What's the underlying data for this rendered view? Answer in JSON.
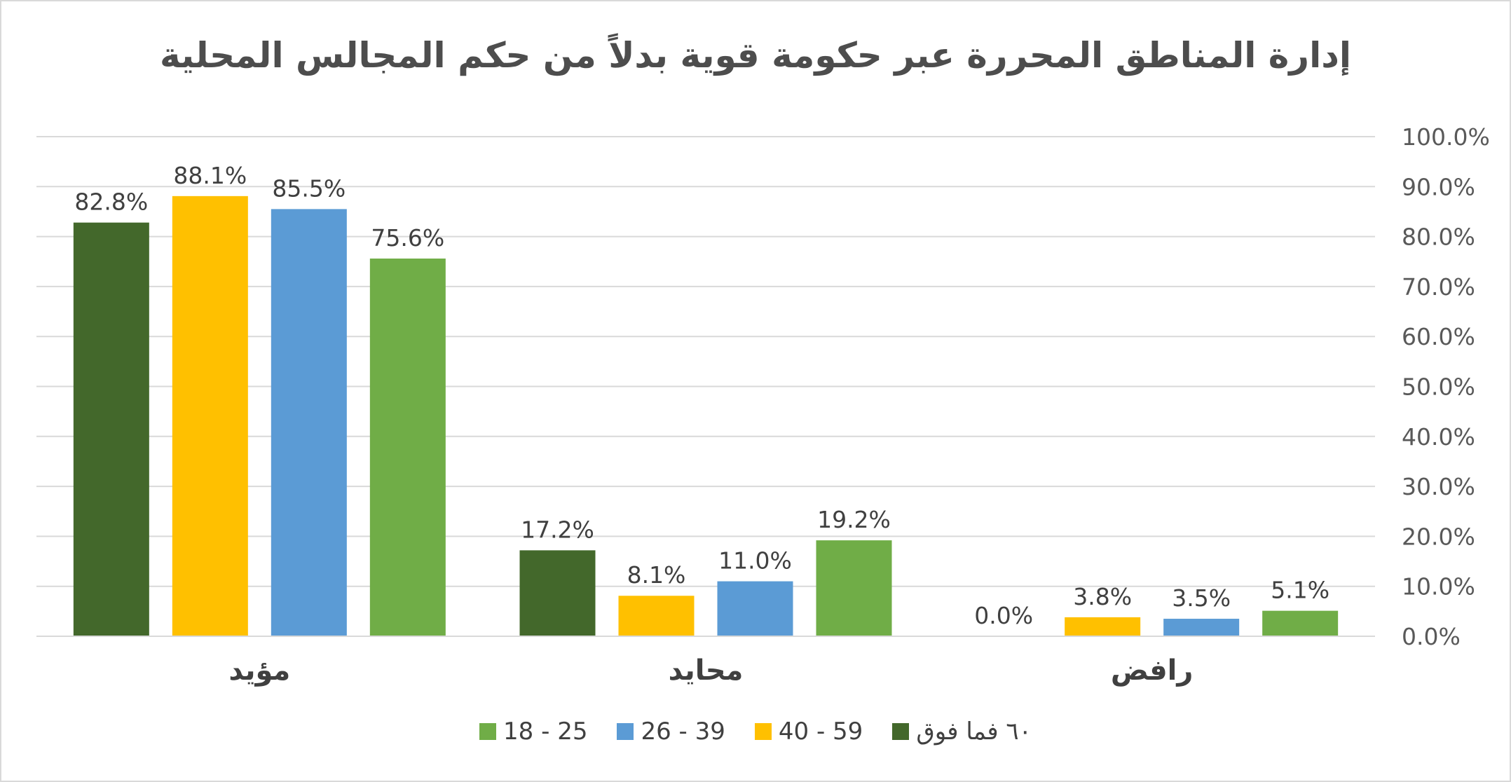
{
  "chart_data": {
    "type": "bar",
    "title": "إدارة المناطق المحررة عبر حكومة قوية بدلاً من حكم المجالس المحلية",
    "categories": [
      "مؤيد",
      "محايد",
      "رافض"
    ],
    "series": [
      {
        "name": "٦٠ فما فوق",
        "color": "#43682b",
        "values": [
          82.8,
          17.2,
          0.0
        ],
        "labels": [
          "82.8%",
          "17.2%",
          "0.0%"
        ]
      },
      {
        "name": "40 - 59",
        "color": "#ffc000",
        "values": [
          88.1,
          8.1,
          3.8
        ],
        "labels": [
          "88.1%",
          "8.1%",
          "3.8%"
        ]
      },
      {
        "name": "26 - 39",
        "color": "#5b9bd5",
        "values": [
          85.5,
          11.0,
          3.5
        ],
        "labels": [
          "85.5%",
          "11.0%",
          "3.5%"
        ]
      },
      {
        "name": "18 - 25",
        "color": "#70ad47",
        "values": [
          75.6,
          19.2,
          5.1
        ],
        "labels": [
          "75.6%",
          "19.2%",
          "5.1%"
        ]
      }
    ],
    "y_ticks": [
      "0.0%",
      "10.0%",
      "20.0%",
      "30.0%",
      "40.0%",
      "50.0%",
      "60.0%",
      "70.0%",
      "80.0%",
      "90.0%",
      "100.0%"
    ],
    "ylim": [
      0,
      100
    ],
    "y_axis_position": "right",
    "grid": true,
    "legend_position": "bottom",
    "legend_order": [
      "18 - 25",
      "26 - 39",
      "40 - 59",
      "٦٠ فما فوق"
    ]
  }
}
